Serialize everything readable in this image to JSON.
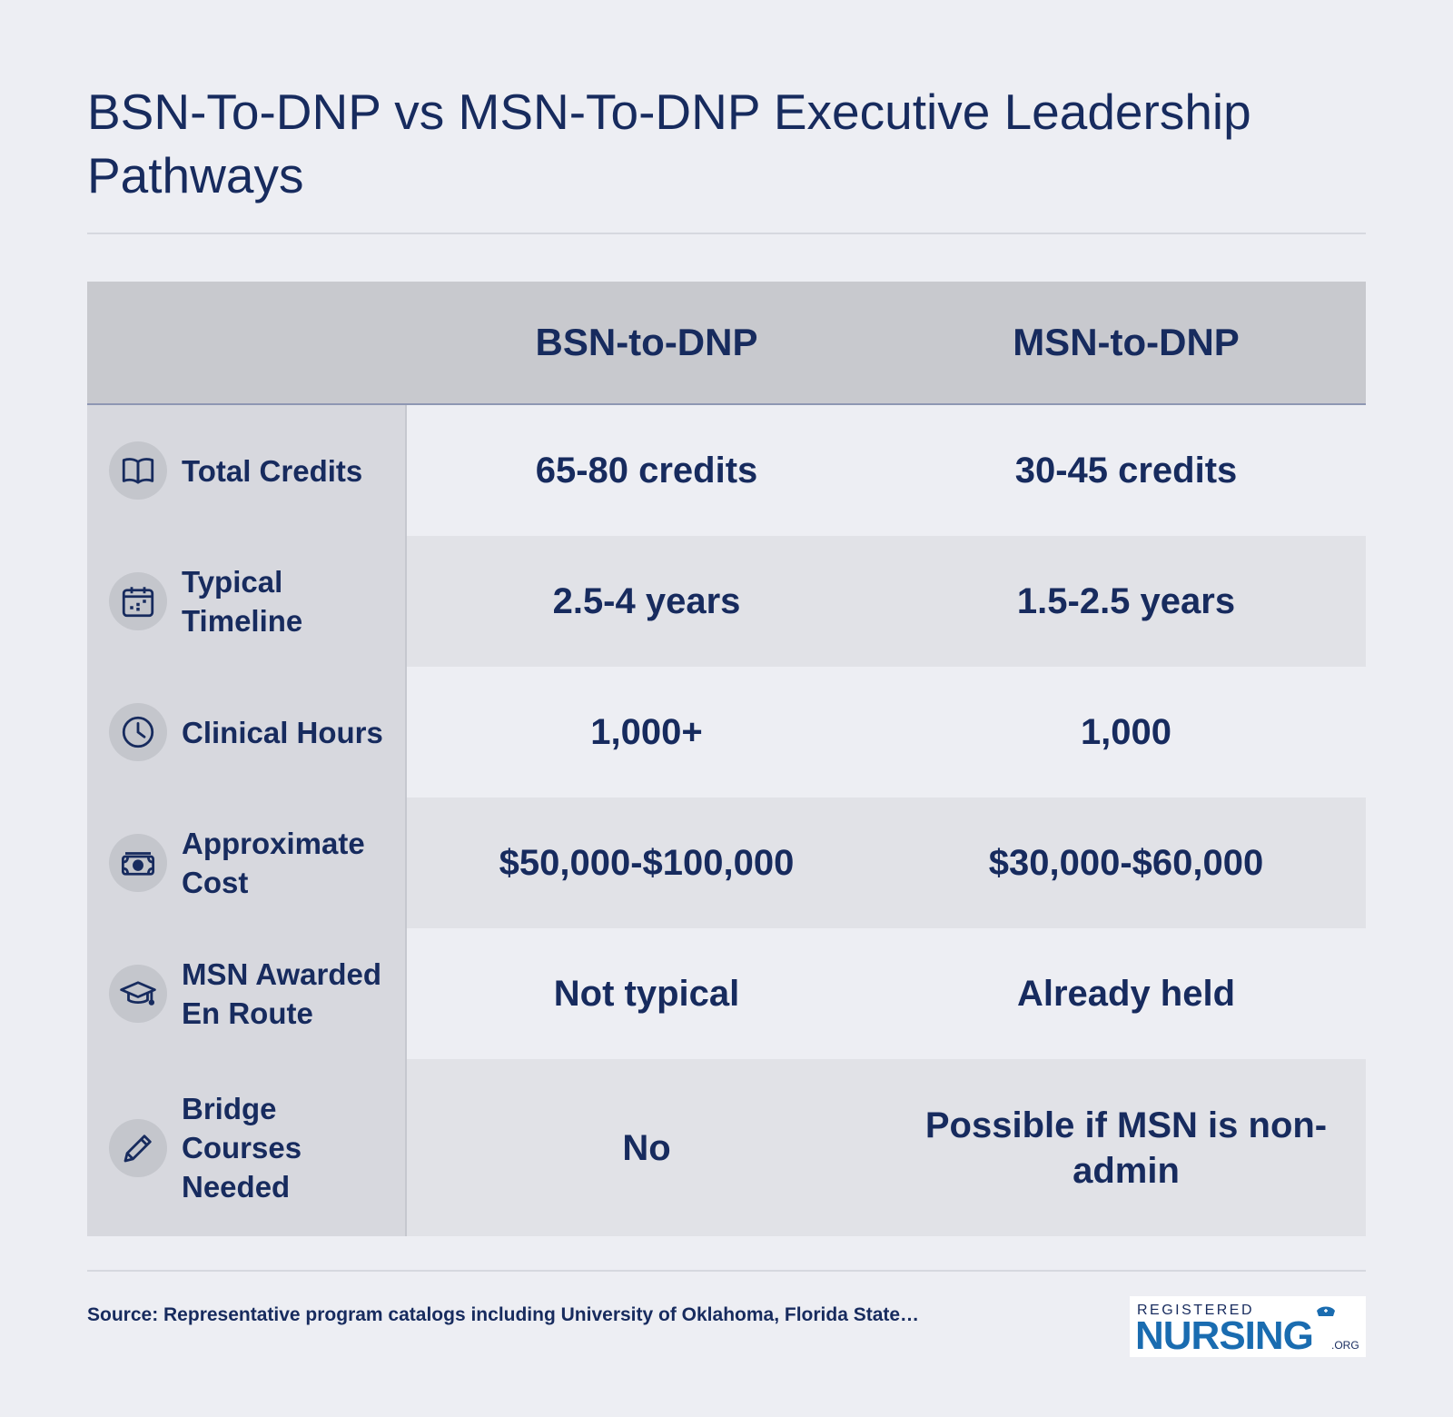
{
  "title": "BSN-To-DNP vs MSN-To-DNP Executive Leadership Pathways",
  "table": {
    "columns": [
      "BSN-to-DNP",
      "MSN-to-DNP"
    ],
    "rows": [
      {
        "label": "Total Credits",
        "icon": "book-icon",
        "bsn": "65-80 credits",
        "msn": "30-45 credits"
      },
      {
        "label": "Typical Timeline",
        "icon": "calendar-icon",
        "bsn": "2.5-4 years",
        "msn": "1.5-2.5 years"
      },
      {
        "label": "Clinical Hours",
        "icon": "clock-icon",
        "bsn": "1,000+",
        "msn": "1,000"
      },
      {
        "label": "Approximate Cost",
        "icon": "money-icon",
        "bsn": "$50,000-$100,000",
        "msn": "$30,000-$60,000"
      },
      {
        "label": "MSN Awarded En Route",
        "icon": "graduation-cap-icon",
        "bsn": "Not typical",
        "msn": "Already held"
      },
      {
        "label": "Bridge Courses Needed",
        "icon": "pencil-icon",
        "bsn": "No",
        "msn": "Possible if MSN is non-admin"
      }
    ]
  },
  "source": "Source: Representative program catalogs including University of Oklahoma, Florida State…",
  "logo": {
    "top": "REGISTERED",
    "main": "NURSING",
    "suffix": ".ORG"
  },
  "colors": {
    "navy": "#172b5e",
    "logo_blue": "#1a6cb0",
    "header_bg": "#c8c9ce",
    "page_bg": "#edeef3"
  }
}
